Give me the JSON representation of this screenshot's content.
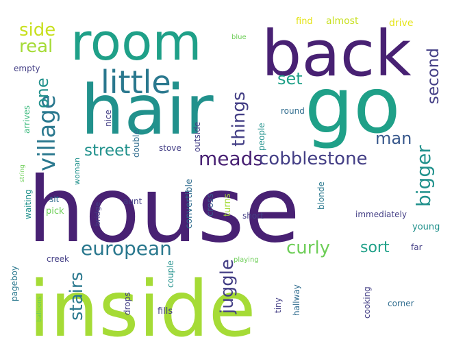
{
  "palette": {
    "dark_purple": "#482173",
    "indigo": "#433e85",
    "slate_blue": "#38588c",
    "blue": "#2f6c8e",
    "teal_blue": "#2a788e",
    "teal": "#21918c",
    "sea_green": "#1fa088",
    "green": "#35b779",
    "light_green": "#6ece58",
    "lime": "#a5db36",
    "yellow_green": "#c8e020",
    "yellow": "#e5e419"
  },
  "words": [
    {
      "text": "house",
      "color": "dark_purple"
    },
    {
      "text": "inside",
      "color": "lime"
    },
    {
      "text": "hair",
      "color": "teal"
    },
    {
      "text": "go",
      "color": "sea_green"
    },
    {
      "text": "back",
      "color": "dark_purple"
    },
    {
      "text": "room",
      "color": "sea_green"
    },
    {
      "text": "little",
      "color": "teal_blue"
    },
    {
      "text": "village",
      "color": "teal_blue"
    },
    {
      "text": "european",
      "color": "teal_blue"
    },
    {
      "text": "meads",
      "color": "dark_purple"
    },
    {
      "text": "cobblestone",
      "color": "indigo"
    },
    {
      "text": "things",
      "color": "indigo"
    },
    {
      "text": "bigger",
      "color": "teal"
    },
    {
      "text": "juggle",
      "color": "indigo"
    },
    {
      "text": "curly",
      "color": "light_green"
    },
    {
      "text": "stairs",
      "color": "teal_blue"
    },
    {
      "text": "street",
      "color": "teal"
    },
    {
      "text": "second",
      "color": "indigo"
    },
    {
      "text": "side",
      "color": "yellow_green"
    },
    {
      "text": "real",
      "color": "lime"
    },
    {
      "text": "one",
      "color": "teal"
    },
    {
      "text": "man",
      "color": "slate_blue"
    },
    {
      "text": "set",
      "color": "sea_green"
    },
    {
      "text": "sort",
      "color": "sea_green"
    },
    {
      "text": "find",
      "color": "yellow"
    },
    {
      "text": "almost",
      "color": "yellow_green"
    },
    {
      "text": "drive",
      "color": "yellow"
    },
    {
      "text": "blue",
      "color": "light_green"
    },
    {
      "text": "empty",
      "color": "indigo"
    },
    {
      "text": "round",
      "color": "blue"
    },
    {
      "text": "people",
      "color": "teal"
    },
    {
      "text": "outside",
      "color": "indigo"
    },
    {
      "text": "nice",
      "color": "indigo"
    },
    {
      "text": "double",
      "color": "blue"
    },
    {
      "text": "arrives",
      "color": "green"
    },
    {
      "text": "stove",
      "color": "indigo"
    },
    {
      "text": "woman",
      "color": "teal"
    },
    {
      "text": "convertible",
      "color": "blue"
    },
    {
      "text": "cross",
      "color": "slate_blue"
    },
    {
      "text": "turns",
      "color": "lime"
    },
    {
      "text": "blonde",
      "color": "teal_blue"
    },
    {
      "text": "immediately",
      "color": "indigo"
    },
    {
      "text": "string",
      "color": "light_green"
    },
    {
      "text": "bridge",
      "color": "indigo"
    },
    {
      "text": "waiting",
      "color": "teal"
    },
    {
      "text": "sit",
      "color": "blue"
    },
    {
      "text": "pick",
      "color": "light_green"
    },
    {
      "text": "aunt",
      "color": "indigo"
    },
    {
      "text": "short",
      "color": "indigo"
    },
    {
      "text": "young",
      "color": "teal"
    },
    {
      "text": "far",
      "color": "indigo"
    },
    {
      "text": "creek",
      "color": "indigo"
    },
    {
      "text": "playing",
      "color": "light_green"
    },
    {
      "text": "pageboy",
      "color": "teal_blue"
    },
    {
      "text": "couple",
      "color": "teal"
    },
    {
      "text": "drops",
      "color": "indigo"
    },
    {
      "text": "fills",
      "color": "indigo"
    },
    {
      "text": "tiny",
      "color": "indigo"
    },
    {
      "text": "hallway",
      "color": "blue"
    },
    {
      "text": "cooking",
      "color": "indigo"
    },
    {
      "text": "corner",
      "color": "blue"
    },
    {
      "text": "balloons",
      "color": "light_green"
    }
  ]
}
